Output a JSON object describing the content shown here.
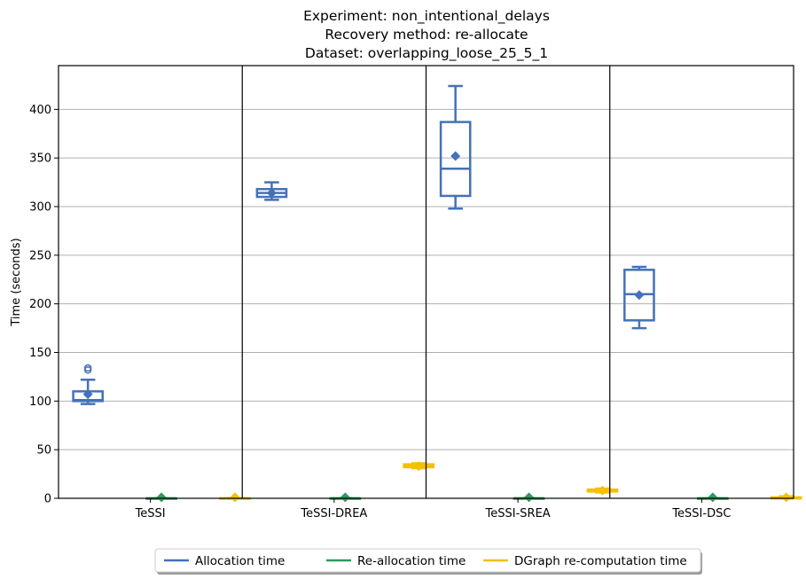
{
  "chart_data": {
    "type": "box",
    "title_lines": [
      "Experiment: non_intentional_delays",
      "Recovery method: re-allocate",
      "Dataset: overlapping_loose_25_5_1"
    ],
    "xlabel": "",
    "ylabel": "Time (seconds)",
    "ylim": [
      0,
      445
    ],
    "yticks": [
      0,
      50,
      100,
      150,
      200,
      250,
      300,
      350,
      400
    ],
    "grid": "horizontal",
    "legend_position": "bottom-center",
    "categories": [
      "TeSSI",
      "TeSSI-DREA",
      "TeSSI-SREA",
      "TeSSI-DSC"
    ],
    "series": [
      {
        "name": "Allocation time",
        "color": "#4472b8",
        "boxes": [
          {
            "whislo": 97,
            "q1": 100,
            "median": 101,
            "q3": 110,
            "whishi": 122,
            "mean": 107,
            "fliers": [
              132,
              134
            ]
          },
          {
            "whislo": 307,
            "q1": 310,
            "median": 314,
            "q3": 318,
            "whishi": 325,
            "mean": 314,
            "fliers": []
          },
          {
            "whislo": 298,
            "q1": 311,
            "median": 339,
            "q3": 387,
            "whishi": 424,
            "mean": 352,
            "fliers": []
          },
          {
            "whislo": 175,
            "q1": 183,
            "median": 210,
            "q3": 235,
            "whishi": 238,
            "mean": 209,
            "fliers": []
          }
        ]
      },
      {
        "name": "Re-allocation time",
        "color": "#2e9a5d",
        "boxes": [
          {
            "whislo": 0,
            "q1": 0,
            "median": 0,
            "q3": 0,
            "whishi": 0,
            "mean": 1,
            "fliers": []
          },
          {
            "whislo": 0,
            "q1": 0,
            "median": 0,
            "q3": 0,
            "whishi": 0,
            "mean": 1,
            "fliers": []
          },
          {
            "whislo": 0,
            "q1": 0,
            "median": 0,
            "q3": 0,
            "whishi": 0,
            "mean": 1,
            "fliers": []
          },
          {
            "whislo": 0,
            "q1": 0,
            "median": 0,
            "q3": 0,
            "whishi": 0,
            "mean": 1,
            "fliers": []
          }
        ]
      },
      {
        "name": "DGraph re-computation time",
        "color": "#f5c000",
        "boxes": [
          {
            "whislo": 0,
            "q1": 0,
            "median": 0,
            "q3": 0,
            "whishi": 0,
            "mean": 1,
            "fliers": []
          },
          {
            "whislo": 31,
            "q1": 32,
            "median": 33,
            "q3": 35,
            "whishi": 36,
            "mean": 33,
            "fliers": []
          },
          {
            "whislo": 6,
            "q1": 7,
            "median": 8,
            "q3": 9,
            "whishi": 10,
            "mean": 8,
            "fliers": []
          },
          {
            "whislo": 0,
            "q1": 0,
            "median": 0,
            "q3": 1,
            "whishi": 2,
            "mean": 1,
            "fliers": []
          }
        ]
      }
    ]
  }
}
